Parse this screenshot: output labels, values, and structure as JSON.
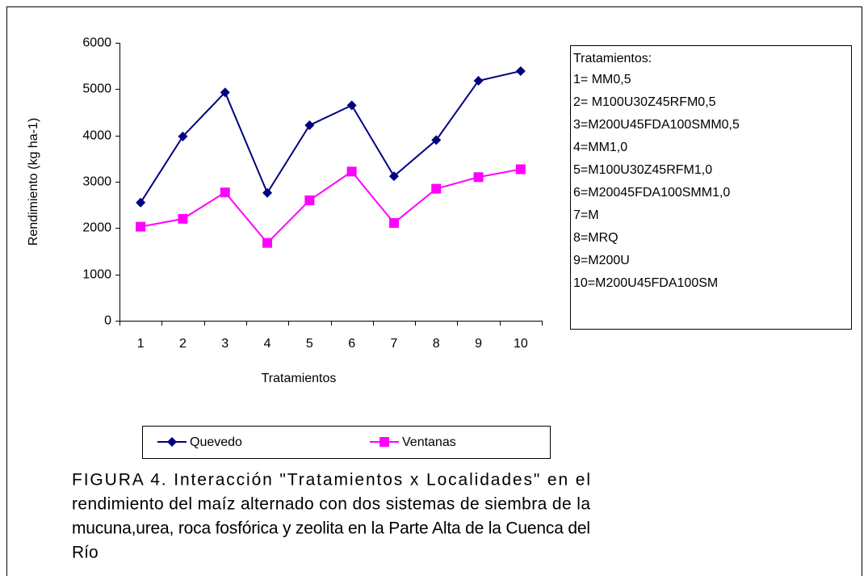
{
  "chart_data": {
    "type": "line",
    "xlabel": "Tratamientos",
    "ylabel": "Rendimiento (kg ha-1)",
    "categories": [
      "1",
      "2",
      "3",
      "4",
      "5",
      "6",
      "7",
      "8",
      "9",
      "10"
    ],
    "series": [
      {
        "name": "Quevedo",
        "color": "#000080",
        "marker": "diamond",
        "values": [
          2550,
          3980,
          4930,
          2760,
          4220,
          4650,
          3120,
          3900,
          5180,
          5390
        ]
      },
      {
        "name": "Ventanas",
        "color": "#ff00ff",
        "marker": "square",
        "values": [
          2030,
          2200,
          2770,
          1680,
          2600,
          3220,
          2110,
          2850,
          3100,
          3270
        ]
      }
    ],
    "ylim": [
      0,
      6000
    ],
    "yticks": [
      0,
      1000,
      2000,
      3000,
      4000,
      5000,
      6000
    ],
    "grid": false
  },
  "notes_box": {
    "title": "Tratamientos:",
    "lines": [
      "1= MM0,5",
      "2= M100U30Z45RFM0,5",
      "3=M200U45FDA100SMM0,5",
      "4=MM1,0",
      "5=M100U30Z45RFM1,0",
      "6=M20045FDA100SMM1,0",
      "7=M",
      "8=MRQ",
      "9=M200U",
      "10=M200U45FDA100SM"
    ]
  },
  "caption": [
    "FIGURA 4. Interacción \"Tratamientos x Localidades\" en el",
    "rendimiento del maíz alternado con dos sistemas de siembra de la",
    "mucuna,urea, roca fosfórica y zeolita en la Parte Alta de la Cuenca del",
    "Río"
  ]
}
